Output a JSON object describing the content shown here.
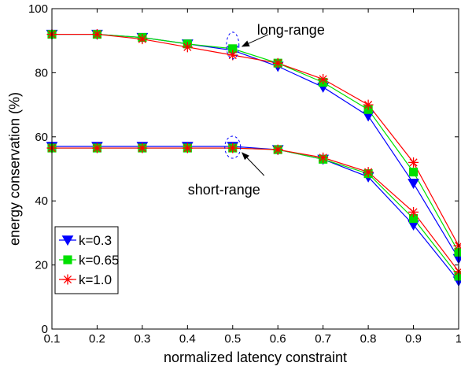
{
  "chart_data": {
    "type": "line",
    "xlabel": "normalized latency constraint",
    "ylabel": "energy conservation (%)",
    "xlim": [
      0.1,
      1
    ],
    "ylim": [
      0,
      100
    ],
    "x_ticks": [
      "0.1",
      "0.2",
      "0.3",
      "0.4",
      "0.5",
      "0.6",
      "0.7",
      "0.8",
      "0.9",
      "1"
    ],
    "x_tick_values": [
      0.1,
      0.2,
      0.3,
      0.4,
      0.5,
      0.6,
      0.7,
      0.8,
      0.9,
      1.0
    ],
    "y_ticks": [
      "0",
      "20",
      "40",
      "60",
      "80",
      "100"
    ],
    "y_tick_values": [
      0,
      20,
      40,
      60,
      80,
      100
    ],
    "grid": false,
    "legend_position": "bottom-left",
    "x": [
      0.1,
      0.2,
      0.3,
      0.4,
      0.5,
      0.6,
      0.7,
      0.8,
      0.9,
      1.0
    ],
    "groups": [
      {
        "label": "long-range",
        "series": [
          {
            "name": "k=0.3",
            "color": "#0000ff",
            "marker": "triangle-down",
            "values": [
              92,
              92,
              91,
              89,
              87,
              82,
              75.5,
              66.5,
              45.5,
              22
            ]
          },
          {
            "name": "k=0.65",
            "color": "#00e000",
            "marker": "square",
            "values": [
              92,
              92,
              91,
              89,
              87.5,
              83,
              77,
              68.5,
              49,
              24
            ]
          },
          {
            "name": "k=1.0",
            "color": "#ff0000",
            "marker": "asterisk",
            "values": [
              92,
              92,
              90.5,
              88,
              85.5,
              83,
              78,
              70,
              52,
              26
            ]
          }
        ]
      },
      {
        "label": "short-range",
        "series": [
          {
            "name": "k=0.3",
            "color": "#0000ff",
            "marker": "triangle-down",
            "values": [
              57,
              57,
              57,
              57,
              57,
              56,
              53,
              47.5,
              32.5,
              15
            ]
          },
          {
            "name": "k=0.65",
            "color": "#00e000",
            "marker": "square",
            "values": [
              56.5,
              56.5,
              56.5,
              56.5,
              56.5,
              56,
              53,
              48.5,
              34.5,
              16.5
            ]
          },
          {
            "name": "k=1.0",
            "color": "#ff0000",
            "marker": "asterisk",
            "values": [
              56.5,
              56.5,
              56.5,
              56.5,
              56.5,
              56,
              53.5,
              49,
              36.5,
              18
            ]
          }
        ]
      }
    ],
    "legend": [
      {
        "name": "k=0.3",
        "color": "#0000ff",
        "marker": "triangle-down"
      },
      {
        "name": "k=0.65",
        "color": "#00e000",
        "marker": "square"
      },
      {
        "name": "k=1.0",
        "color": "#ff0000",
        "marker": "asterisk"
      }
    ],
    "annotations": [
      {
        "text": "long-range",
        "target_x": 0.5,
        "target_y": 87
      },
      {
        "text": "short-range",
        "target_x": 0.5,
        "target_y": 57
      }
    ]
  }
}
